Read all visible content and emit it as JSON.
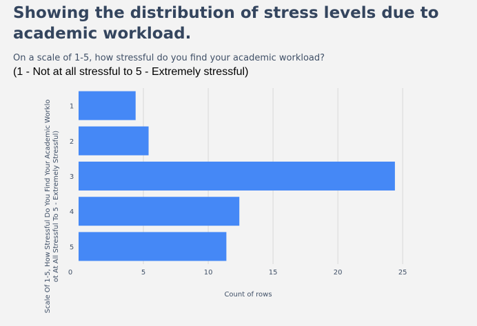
{
  "header": {
    "title": "Showing the distribution of stress levels due to academic workload.",
    "subtitle": "On a scale of 1-5, how stressful do you find your academic workload?",
    "scale_note": "(1 - Not at all stressful to 5 - Extremely stressful)"
  },
  "colors": {
    "bar": "#4588f6",
    "grid": "#d9d9d9",
    "text": "#3f4f66"
  },
  "chart_data": {
    "type": "bar",
    "orientation": "horizontal",
    "categories": [
      "1",
      "2",
      "3",
      "4",
      "5"
    ],
    "values": [
      4.4,
      5.4,
      24.4,
      12.4,
      11.4
    ],
    "xlabel": "Count of rows",
    "ylabel_lines": [
      "Scale Of 1-5, How Stressful Do You Find Your Academic Worklo",
      "ot At All Stressful To 5 - Extremely Stressful)"
    ],
    "xlim": [
      0,
      26
    ],
    "xticks": [
      0,
      5,
      10,
      15,
      20,
      25
    ],
    "grid": true
  }
}
